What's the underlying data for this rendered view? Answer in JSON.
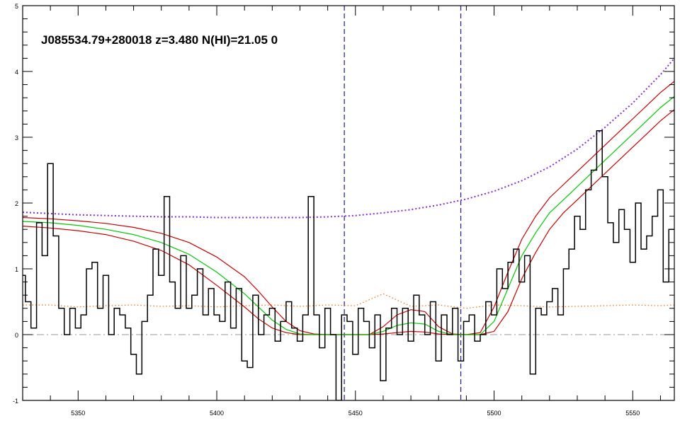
{
  "chart_data": {
    "type": "line",
    "title": "J085534.79+280018 z=3.480 N(HI)=21.05 0",
    "xlabel": "",
    "ylabel": "",
    "xlim": [
      5330,
      5565
    ],
    "ylim": [
      -1,
      5
    ],
    "x_ticks": [
      5350,
      5400,
      5450,
      5500,
      5550
    ],
    "y_ticks": [
      -1,
      0,
      1,
      2,
      3,
      4,
      5
    ],
    "grid": false,
    "legend": "none",
    "zero_line": 0,
    "vertical_markers": [
      5446,
      5488
    ],
    "colors": {
      "flux": "#000000",
      "error": "#ff6a00",
      "model": "#00cc00",
      "model_bounds": "#cc0000",
      "continuum": "#8a2be2",
      "markers": "#1a1aa0",
      "zero": "#999999"
    },
    "series": [
      {
        "x": [
          5330,
          5332,
          5334,
          5336,
          5338,
          5340,
          5342,
          5344,
          5346,
          5348,
          5350,
          5352,
          5354,
          5356,
          5358,
          5360,
          5362,
          5364,
          5366,
          5368,
          5370,
          5372,
          5374,
          5376,
          5378,
          5380,
          5382,
          5384,
          5386,
          5388,
          5390,
          5392,
          5394,
          5396,
          5398,
          5400,
          5402,
          5404,
          5406,
          5408,
          5410,
          5412,
          5414,
          5416,
          5418,
          5420,
          5422,
          5424,
          5426,
          5428,
          5430,
          5432,
          5434,
          5436,
          5438,
          5440,
          5442,
          5444,
          5446,
          5448,
          5450,
          5452,
          5454,
          5456,
          5458,
          5460,
          5462,
          5464,
          5466,
          5468,
          5470,
          5472,
          5474,
          5476,
          5478,
          5480,
          5482,
          5484,
          5486,
          5488,
          5490,
          5492,
          5494,
          5496,
          5498,
          5500,
          5502,
          5504,
          5506,
          5508,
          5510,
          5512,
          5514,
          5516,
          5518,
          5520,
          5522,
          5524,
          5526,
          5528,
          5530,
          5532,
          5534,
          5536,
          5538,
          5540,
          5542,
          5544,
          5546,
          5548,
          5550,
          5552,
          5554,
          5556,
          5558,
          5560,
          5562,
          5564
        ],
        "values": [
          0.9,
          0.5,
          0.1,
          1.7,
          1.2,
          2.6,
          1.5,
          0.4,
          0.0,
          0.4,
          0.1,
          0.3,
          1.0,
          1.1,
          0.4,
          0.9,
          0.0,
          0.4,
          0.3,
          0.1,
          -0.3,
          -0.6,
          0.2,
          0.6,
          1.3,
          0.9,
          2.1,
          0.8,
          0.4,
          1.2,
          0.4,
          0.6,
          1.0,
          0.3,
          0.7,
          0.3,
          0.2,
          0.8,
          0.1,
          0.7,
          -0.4,
          -0.5,
          0.6,
          0.0,
          0.3,
          0.4,
          -0.1,
          0.2,
          0.5,
          0.1,
          -0.1,
          0.3,
          2.1,
          0.3,
          -0.2,
          0.4,
          0.0,
          -1.0,
          0.3,
          0.2,
          -0.3,
          0.4,
          0.2,
          -0.2,
          0.3,
          -0.7,
          0.1,
          0.4,
          0.0,
          0.4,
          -0.1,
          0.6,
          0.3,
          0.0,
          0.5,
          -0.4,
          0.3,
          0.0,
          0.4,
          -0.4,
          0.2,
          0.3,
          -0.1,
          0.0,
          0.5,
          0.3,
          1.0,
          0.7,
          1.1,
          1.3,
          0.8,
          1.2,
          -0.6,
          0.4,
          0.3,
          0.5,
          0.7,
          0.3,
          1.0,
          1.3,
          1.8,
          1.6,
          2.2,
          2.5,
          3.1,
          2.4,
          1.7,
          1.4,
          1.9,
          1.6,
          1.1,
          2.0,
          1.3,
          1.5,
          1.8,
          2.2,
          0.8,
          1.6
        ],
        "style": "histogram"
      },
      {
        "name": "",
        "x": [
          5330,
          5340,
          5350,
          5360,
          5370,
          5380,
          5390,
          5400,
          5410,
          5420,
          5430,
          5440,
          5450,
          5460,
          5470,
          5480,
          5490,
          5500,
          5510,
          5520,
          5530,
          5540,
          5550,
          5560,
          5565
        ],
        "values": [
          0.45,
          0.45,
          0.42,
          0.44,
          0.45,
          0.43,
          0.44,
          0.42,
          0.44,
          0.45,
          0.43,
          0.45,
          0.44,
          0.62,
          0.43,
          0.45,
          0.4,
          0.45,
          0.44,
          0.42,
          0.43,
          0.44,
          0.45,
          0.44,
          0.45
        ],
        "style": "dotted"
      },
      {
        "x": [
          5330,
          5340,
          5350,
          5360,
          5370,
          5380,
          5390,
          5400,
          5410,
          5415,
          5420,
          5425,
          5430,
          5435,
          5440,
          5445,
          5450,
          5455,
          5460,
          5465,
          5470,
          5475,
          5480,
          5485,
          5490,
          5495,
          5500,
          5505,
          5510,
          5515,
          5520,
          5525,
          5530,
          5535,
          5540,
          5545,
          5550,
          5555,
          5560,
          5565
        ],
        "values": [
          1.72,
          1.7,
          1.66,
          1.6,
          1.52,
          1.4,
          1.22,
          0.95,
          0.62,
          0.42,
          0.22,
          0.08,
          0.01,
          0.0,
          0.0,
          0.0,
          0.0,
          0.0,
          0.05,
          0.14,
          0.18,
          0.16,
          0.05,
          0.0,
          0.0,
          0.0,
          0.2,
          0.7,
          1.2,
          1.55,
          1.85,
          2.05,
          2.25,
          2.45,
          2.65,
          2.85,
          3.05,
          3.25,
          3.45,
          3.62
        ],
        "style": "solid"
      },
      {
        "x": [
          5330,
          5340,
          5350,
          5360,
          5370,
          5380,
          5390,
          5400,
          5410,
          5415,
          5420,
          5425,
          5430,
          5435,
          5440,
          5445,
          5450,
          5455,
          5460,
          5465,
          5470,
          5475,
          5480,
          5485,
          5490,
          5495,
          5500,
          5505,
          5510,
          5515,
          5520,
          5525,
          5530,
          5535,
          5540,
          5545,
          5550,
          5555,
          5560,
          5565
        ],
        "values": [
          1.78,
          1.76,
          1.73,
          1.69,
          1.63,
          1.54,
          1.4,
          1.18,
          0.88,
          0.66,
          0.42,
          0.2,
          0.06,
          0.01,
          0.0,
          0.0,
          0.0,
          0.0,
          0.12,
          0.3,
          0.38,
          0.35,
          0.12,
          0.01,
          0.0,
          0.03,
          0.42,
          0.95,
          1.45,
          1.8,
          2.08,
          2.28,
          2.48,
          2.68,
          2.88,
          3.08,
          3.28,
          3.48,
          3.68,
          3.85
        ],
        "style": "solid"
      },
      {
        "x": [
          5330,
          5340,
          5350,
          5360,
          5370,
          5380,
          5390,
          5400,
          5410,
          5415,
          5420,
          5425,
          5430,
          5435,
          5440,
          5445,
          5450,
          5455,
          5460,
          5465,
          5470,
          5475,
          5480,
          5485,
          5490,
          5495,
          5500,
          5505,
          5510,
          5515,
          5520,
          5525,
          5530,
          5535,
          5540,
          5545,
          5550,
          5555,
          5560,
          5565
        ],
        "values": [
          1.65,
          1.62,
          1.58,
          1.52,
          1.42,
          1.28,
          1.06,
          0.75,
          0.42,
          0.24,
          0.1,
          0.03,
          0.0,
          0.0,
          0.0,
          0.0,
          0.0,
          0.0,
          0.01,
          0.03,
          0.05,
          0.04,
          0.01,
          0.0,
          0.0,
          0.0,
          0.05,
          0.35,
          0.85,
          1.25,
          1.6,
          1.85,
          2.05,
          2.25,
          2.45,
          2.65,
          2.85,
          3.05,
          3.25,
          3.42
        ],
        "style": "solid"
      },
      {
        "x": [
          5330,
          5340,
          5350,
          5360,
          5370,
          5380,
          5390,
          5400,
          5410,
          5420,
          5430,
          5440,
          5450,
          5460,
          5470,
          5480,
          5490,
          5500,
          5510,
          5520,
          5530,
          5540,
          5550,
          5560,
          5565
        ],
        "values": [
          1.86,
          1.84,
          1.82,
          1.81,
          1.8,
          1.79,
          1.79,
          1.78,
          1.78,
          1.78,
          1.78,
          1.79,
          1.81,
          1.85,
          1.9,
          1.97,
          2.06,
          2.18,
          2.34,
          2.55,
          2.82,
          3.15,
          3.52,
          3.95,
          4.2
        ],
        "style": "dotted"
      }
    ]
  }
}
